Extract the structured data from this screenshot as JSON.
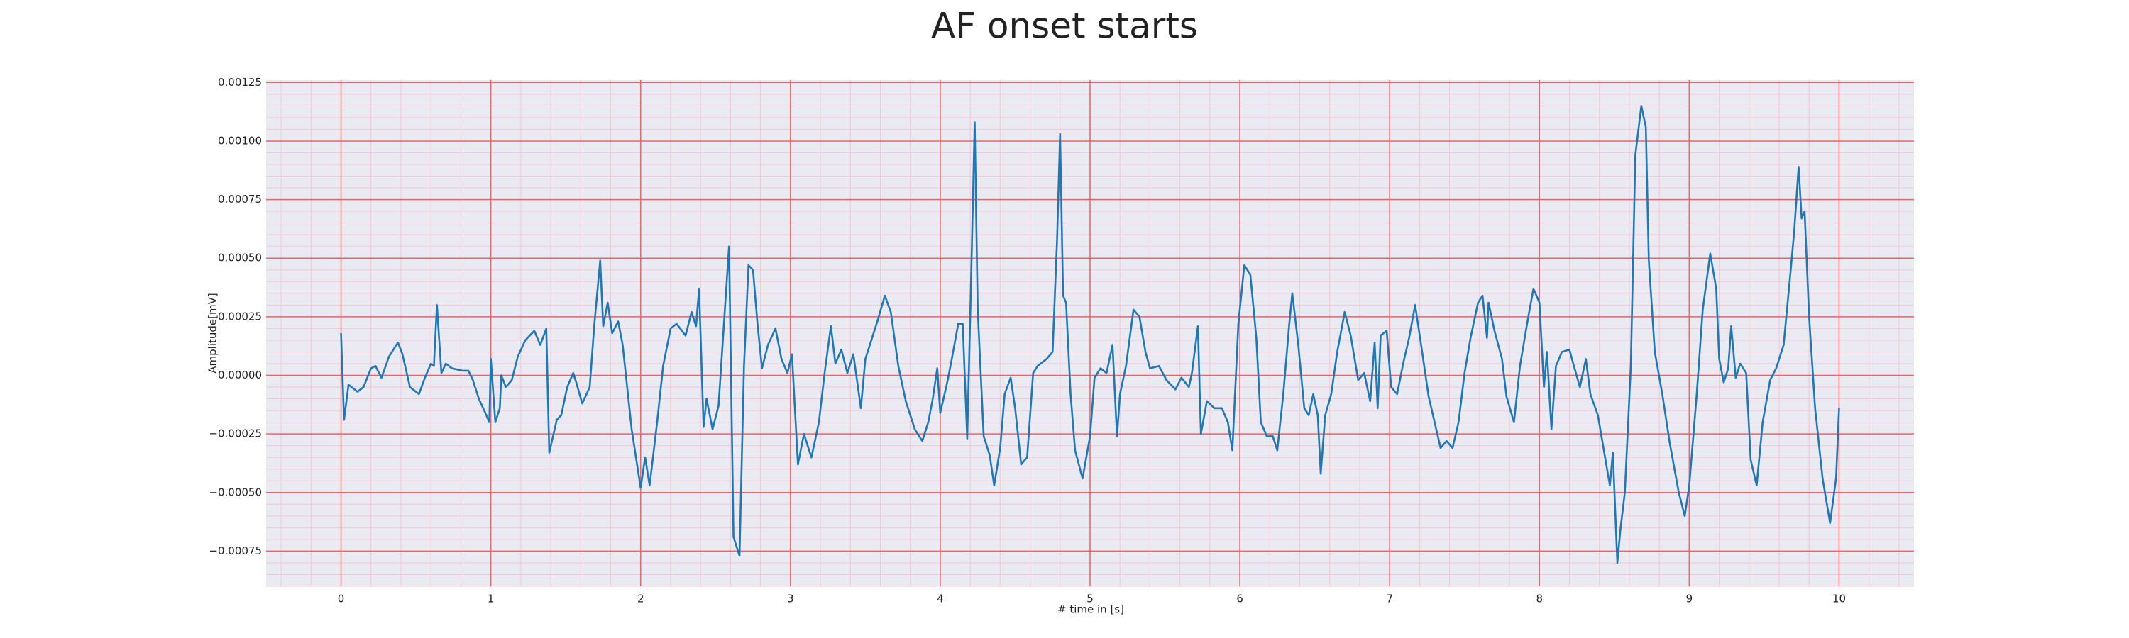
{
  "chart_data": {
    "type": "line",
    "title": "AF onset starts",
    "xlabel": "# time in [s]",
    "ylabel": "Amplitude[mV]",
    "xlim": [
      -0.5,
      10.5
    ],
    "ylim": [
      -0.0009,
      0.00126
    ],
    "xticks": [
      0,
      1,
      2,
      3,
      4,
      5,
      6,
      7,
      8,
      9,
      10
    ],
    "yticks": [
      {
        "value": -0.00075,
        "label": "−0.00075"
      },
      {
        "value": -0.0005,
        "label": "−0.00050"
      },
      {
        "value": -0.00025,
        "label": "−0.00025"
      },
      {
        "value": 0,
        "label": "0.00000"
      },
      {
        "value": 0.00025,
        "label": "0.00025"
      },
      {
        "value": 0.0005,
        "label": "0.00050"
      },
      {
        "value": 0.00075,
        "label": "0.00075"
      },
      {
        "value": 0.001,
        "label": "0.00100"
      },
      {
        "value": 0.00125,
        "label": "0.00125"
      }
    ],
    "grid": true,
    "grid_color": "#f06060",
    "minor_grid": {
      "x": 0.2,
      "y": 5e-05,
      "color": "#f7c6d0"
    },
    "background": "#eaeaf2",
    "x": [
      0,
      0.02,
      0.05,
      0.11,
      0.15,
      0.2,
      0.23,
      0.27,
      0.32,
      0.38,
      0.41,
      0.46,
      0.52,
      0.56,
      0.6,
      0.62,
      0.64,
      0.67,
      0.7,
      0.74,
      0.81,
      0.85,
      0.88,
      0.92,
      0.97,
      0.99,
      1.0,
      1.03,
      1.06,
      1.07,
      1.1,
      1.14,
      1.18,
      1.23,
      1.29,
      1.33,
      1.37,
      1.39,
      1.44,
      1.47,
      1.51,
      1.55,
      1.57,
      1.61,
      1.66,
      1.69,
      1.73,
      1.75,
      1.78,
      1.81,
      1.85,
      1.88,
      1.94,
      2.0,
      2.03,
      2.06,
      2.11,
      2.15,
      2.2,
      2.24,
      2.3,
      2.34,
      2.37,
      2.39,
      2.42,
      2.44,
      2.48,
      2.52,
      2.59,
      2.62,
      2.66,
      2.69,
      2.72,
      2.75,
      2.78,
      2.81,
      2.85,
      2.9,
      2.94,
      2.98,
      3.01,
      3.05,
      3.09,
      3.14,
      3.19,
      3.23,
      3.27,
      3.3,
      3.34,
      3.38,
      3.42,
      3.47,
      3.5,
      3.54,
      3.58,
      3.63,
      3.67,
      3.72,
      3.77,
      3.83,
      3.88,
      3.92,
      3.95,
      3.98,
      4.0,
      4.05,
      4.08,
      4.12,
      4.15,
      4.18,
      4.21,
      4.23,
      4.25,
      4.29,
      4.33,
      4.36,
      4.4,
      4.43,
      4.47,
      4.5,
      4.54,
      4.58,
      4.62,
      4.65,
      4.71,
      4.75,
      4.78,
      4.8,
      4.82,
      4.84,
      4.87,
      4.9,
      4.95,
      5.0,
      5.03,
      5.07,
      5.11,
      5.15,
      5.18,
      5.2,
      5.24,
      5.29,
      5.33,
      5.37,
      5.4,
      5.46,
      5.51,
      5.57,
      5.61,
      5.66,
      5.68,
      5.72,
      5.74,
      5.78,
      5.83,
      5.88,
      5.92,
      5.95,
      5.99,
      6.03,
      6.07,
      6.11,
      6.14,
      6.18,
      6.22,
      6.25,
      6.29,
      6.33,
      6.35,
      6.39,
      6.43,
      6.46,
      6.49,
      6.52,
      6.54,
      6.57,
      6.61,
      6.65,
      6.7,
      6.74,
      6.79,
      6.83,
      6.87,
      6.9,
      6.92,
      6.94,
      6.98,
      7.01,
      7.05,
      7.09,
      7.13,
      7.17,
      7.21,
      7.26,
      7.3,
      7.34,
      7.38,
      7.42,
      7.46,
      7.5,
      7.54,
      7.59,
      7.62,
      7.65,
      7.66,
      7.7,
      7.75,
      7.78,
      7.83,
      7.87,
      7.92,
      7.96,
      8.0,
      8.03,
      8.05,
      8.08,
      8.11,
      8.15,
      8.2,
      8.23,
      8.27,
      8.31,
      8.34,
      8.39,
      8.43,
      8.47,
      8.49,
      8.52,
      8.54,
      8.57,
      8.61,
      8.64,
      8.68,
      8.71,
      8.73,
      8.77,
      8.82,
      8.87,
      8.93,
      8.97,
      9.0,
      9.05,
      9.09,
      9.14,
      9.18,
      9.2,
      9.23,
      9.26,
      9.28,
      9.31,
      9.34,
      9.38,
      9.41,
      9.45,
      9.49,
      9.54,
      9.58,
      9.63,
      9.67,
      9.7,
      9.73,
      9.75,
      9.77,
      9.8,
      9.84,
      9.89,
      9.94,
      9.98,
      10.0
    ],
    "series": [
      {
        "color": "#1f77b4",
        "values": [
          0.00018,
          -0.00019,
          -4e-05,
          -7e-05,
          -5e-05,
          3e-05,
          4e-05,
          -1e-05,
          8e-05,
          0.00014,
          9e-05,
          -5e-05,
          -8e-05,
          -1e-05,
          5e-05,
          4e-05,
          0.0003,
          1e-05,
          5e-05,
          3e-05,
          2e-05,
          2e-05,
          -2e-05,
          -0.0001,
          -0.00017,
          -0.0002,
          7e-05,
          -0.0002,
          -0.00014,
          0,
          -5e-05,
          -2e-05,
          8e-05,
          0.00015,
          0.00019,
          0.00013,
          0.0002,
          -0.00033,
          -0.00019,
          -0.00017,
          -5e-05,
          1e-05,
          -3e-05,
          -0.00012,
          -5e-05,
          0.00021,
          0.00049,
          0.00021,
          0.00031,
          0.00018,
          0.00023,
          0.00013,
          -0.00023,
          -0.00048,
          -0.00035,
          -0.00047,
          -0.0002,
          4e-05,
          0.0002,
          0.00022,
          0.00017,
          0.00027,
          0.00021,
          0.00037,
          -0.00022,
          -0.0001,
          -0.00023,
          -0.00013,
          0.00055,
          -0.00069,
          -0.00077,
          4e-05,
          0.00047,
          0.00045,
          0.00022,
          3e-05,
          0.00013,
          0.0002,
          7e-05,
          1e-05,
          9e-05,
          -0.00038,
          -0.00025,
          -0.00035,
          -0.0002,
          2e-05,
          0.00021,
          5e-05,
          0.00011,
          1e-05,
          9e-05,
          -0.00014,
          7e-05,
          0.00015,
          0.00023,
          0.00034,
          0.00027,
          4e-05,
          -0.00011,
          -0.00023,
          -0.00028,
          -0.0002,
          -0.0001,
          3e-05,
          -0.00016,
          -2e-05,
          8e-05,
          0.00022,
          0.00022,
          -0.00027,
          0.00052,
          0.00108,
          0.00028,
          -0.00026,
          -0.00034,
          -0.00047,
          -0.00031,
          -8e-05,
          -1e-05,
          -0.00014,
          -0.00038,
          -0.00035,
          1e-05,
          4e-05,
          7e-05,
          0.0001,
          0.00058,
          0.00103,
          0.00034,
          0.00031,
          -8e-05,
          -0.00032,
          -0.00044,
          -0.00026,
          -1e-05,
          3e-05,
          1e-05,
          0.00013,
          -0.00026,
          -8e-05,
          4e-05,
          0.00028,
          0.00025,
          0.0001,
          3e-05,
          4e-05,
          -2e-05,
          -6e-05,
          -1e-05,
          -5e-05,
          1e-05,
          0.00021,
          -0.00025,
          -0.00011,
          -0.00014,
          -0.00014,
          -0.0002,
          -0.00032,
          0.00022,
          0.00047,
          0.00043,
          0.00016,
          -0.0002,
          -0.00026,
          -0.00026,
          -0.00032,
          -8e-05,
          0.00022,
          0.00035,
          0.00013,
          -0.00014,
          -0.00017,
          -8e-05,
          -0.00017,
          -0.00042,
          -0.00017,
          -8e-05,
          0.0001,
          0.00027,
          0.00017,
          -2e-05,
          1e-05,
          -0.00011,
          0.00014,
          -0.00014,
          0.00017,
          0.00019,
          -5e-05,
          -8e-05,
          5e-05,
          0.00016,
          0.0003,
          0.00013,
          -9e-05,
          -0.0002,
          -0.00031,
          -0.00028,
          -0.00031,
          -0.0002,
          1e-05,
          0.00016,
          0.00031,
          0.00034,
          0.00016,
          0.00031,
          0.00019,
          7e-05,
          -9e-05,
          -0.0002,
          4e-05,
          0.00023,
          0.00037,
          0.00031,
          -5e-05,
          0.0001,
          -0.00023,
          4e-05,
          0.0001,
          0.00011,
          4e-05,
          -5e-05,
          7e-05,
          -8e-05,
          -0.00017,
          -0.00032,
          -0.00047,
          -0.00033,
          -0.0008,
          -0.00066,
          -0.0005,
          4e-05,
          0.00094,
          0.00115,
          0.00106,
          0.00049,
          0.0001,
          -8e-05,
          -0.00029,
          -0.0005,
          -0.0006,
          -0.00047,
          -8e-05,
          0.00028,
          0.00052,
          0.00037,
          7e-05,
          -3e-05,
          3e-05,
          0.00021,
          -1e-05,
          5e-05,
          1e-05,
          -0.00036,
          -0.00047,
          -0.0002,
          -2e-05,
          3e-05,
          0.00013,
          0.0004,
          0.00061,
          0.00089,
          0.00067,
          0.0007,
          0.00025,
          -0.00014,
          -0.00044,
          -0.00063,
          -0.00044,
          -0.00014
        ]
      }
    ]
  }
}
